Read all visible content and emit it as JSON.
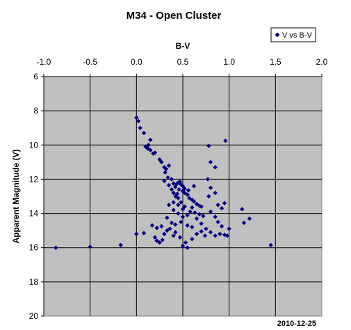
{
  "chart_data": {
    "type": "scatter",
    "title": "M34 - Open Cluster",
    "xlabel": "B-V",
    "ylabel": "Apparent Magnitude (V)",
    "xlim": [
      -1.0,
      2.0
    ],
    "ylim": [
      6,
      20
    ],
    "y_inverted": true,
    "x_axis_position": "top",
    "grid": true,
    "legend": "top-right",
    "marker_color": "#000080",
    "plot_background": "#c0c0c0",
    "xticks": [
      "-1.0",
      "-0.5",
      "0.0",
      "0.5",
      "1.0",
      "1.5",
      "2.0"
    ],
    "yticks": [
      "6",
      "8",
      "10",
      "12",
      "14",
      "16",
      "18",
      "20"
    ],
    "series": [
      {
        "name": "V vs B-V",
        "points": [
          [
            0.0,
            8.4
          ],
          [
            0.02,
            8.6
          ],
          [
            0.04,
            9.0
          ],
          [
            0.08,
            9.3
          ],
          [
            0.15,
            9.7
          ],
          [
            0.1,
            10.1
          ],
          [
            0.13,
            10.0
          ],
          [
            0.12,
            10.2
          ],
          [
            0.15,
            10.3
          ],
          [
            0.18,
            10.5
          ],
          [
            0.2,
            10.45
          ],
          [
            0.25,
            10.85
          ],
          [
            0.27,
            11.0
          ],
          [
            0.3,
            11.3
          ],
          [
            0.32,
            11.4
          ],
          [
            0.35,
            11.2
          ],
          [
            0.31,
            11.6
          ],
          [
            0.34,
            11.9
          ],
          [
            0.38,
            12.0
          ],
          [
            0.4,
            12.25
          ],
          [
            0.45,
            12.2
          ],
          [
            0.48,
            12.3
          ],
          [
            0.42,
            12.45
          ],
          [
            0.46,
            12.6
          ],
          [
            0.5,
            12.7
          ],
          [
            0.44,
            12.85
          ],
          [
            0.52,
            12.8
          ],
          [
            0.55,
            12.9
          ],
          [
            0.57,
            13.1
          ],
          [
            0.6,
            13.2
          ],
          [
            0.62,
            13.3
          ],
          [
            0.65,
            13.45
          ],
          [
            0.68,
            13.55
          ],
          [
            0.7,
            13.6
          ],
          [
            0.3,
            12.1
          ],
          [
            0.35,
            12.35
          ],
          [
            0.38,
            12.6
          ],
          [
            0.4,
            12.8
          ],
          [
            0.42,
            13.0
          ],
          [
            0.45,
            13.1
          ],
          [
            0.48,
            13.35
          ],
          [
            0.35,
            13.5
          ],
          [
            0.4,
            13.8
          ],
          [
            0.45,
            14.0
          ],
          [
            0.5,
            14.2
          ],
          [
            0.55,
            14.1
          ],
          [
            0.58,
            13.9
          ],
          [
            0.52,
            13.6
          ],
          [
            0.48,
            14.5
          ],
          [
            0.55,
            14.7
          ],
          [
            0.6,
            14.8
          ],
          [
            0.65,
            14.3
          ],
          [
            0.7,
            14.6
          ],
          [
            0.75,
            14.9
          ],
          [
            0.8,
            15.1
          ],
          [
            0.85,
            15.3
          ],
          [
            0.9,
            15.2
          ],
          [
            0.95,
            15.25
          ],
          [
            0.98,
            15.3
          ],
          [
            1.0,
            14.9
          ],
          [
            0.92,
            14.75
          ],
          [
            0.88,
            14.5
          ],
          [
            0.85,
            14.2
          ],
          [
            0.8,
            13.9
          ],
          [
            0.88,
            13.5
          ],
          [
            0.92,
            13.7
          ],
          [
            0.95,
            13.4
          ],
          [
            0.8,
            12.5
          ],
          [
            0.78,
            13.0
          ],
          [
            0.85,
            12.8
          ],
          [
            0.77,
            12.0
          ],
          [
            0.8,
            11.0
          ],
          [
            0.85,
            11.3
          ],
          [
            0.78,
            10.05
          ],
          [
            0.96,
            9.75
          ],
          [
            1.14,
            13.75
          ],
          [
            1.16,
            14.55
          ],
          [
            1.22,
            14.3
          ],
          [
            1.45,
            15.85
          ],
          [
            -0.87,
            16.0
          ],
          [
            -0.5,
            15.95
          ],
          [
            -0.17,
            15.85
          ],
          [
            0.0,
            15.2
          ],
          [
            0.08,
            15.15
          ],
          [
            0.17,
            14.7
          ],
          [
            0.2,
            15.4
          ],
          [
            0.22,
            15.6
          ],
          [
            0.25,
            15.7
          ],
          [
            0.28,
            15.55
          ],
          [
            0.22,
            14.85
          ],
          [
            0.27,
            14.75
          ],
          [
            0.3,
            15.2
          ],
          [
            0.33,
            15.0
          ],
          [
            0.36,
            14.9
          ],
          [
            0.4,
            15.3
          ],
          [
            0.42,
            15.1
          ],
          [
            0.47,
            15.4
          ],
          [
            0.5,
            15.9
          ],
          [
            0.55,
            16.0
          ],
          [
            0.53,
            15.7
          ],
          [
            0.6,
            15.5
          ],
          [
            0.65,
            15.2
          ],
          [
            0.7,
            15.05
          ],
          [
            0.74,
            15.3
          ],
          [
            0.5,
            12.4
          ],
          [
            0.47,
            12.15
          ],
          [
            0.43,
            12.3
          ],
          [
            0.52,
            12.55
          ],
          [
            0.56,
            12.65
          ],
          [
            0.62,
            12.4
          ],
          [
            0.45,
            13.5
          ],
          [
            0.5,
            13.75
          ],
          [
            0.6,
            13.65
          ],
          [
            0.63,
            13.95
          ],
          [
            0.68,
            14.05
          ],
          [
            0.72,
            14.15
          ],
          [
            0.4,
            13.35
          ],
          [
            0.33,
            14.25
          ],
          [
            0.38,
            14.55
          ],
          [
            0.42,
            14.65
          ]
        ]
      }
    ],
    "annotations": [
      "2010-12-25"
    ]
  }
}
